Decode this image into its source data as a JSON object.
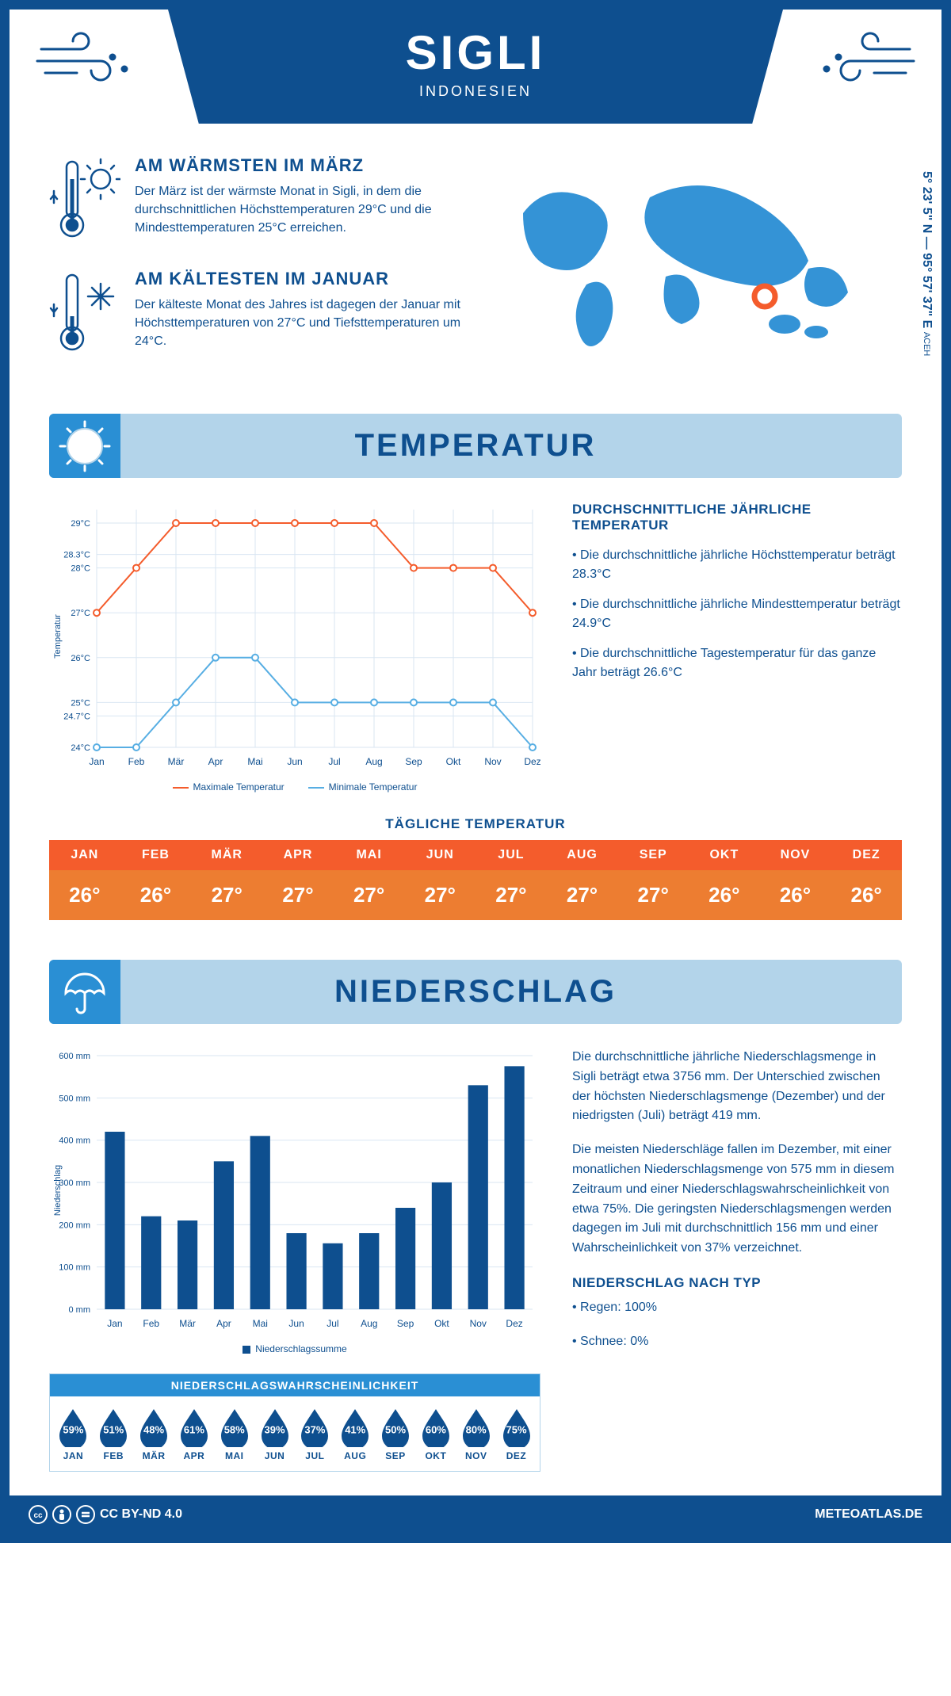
{
  "header": {
    "city": "SIGLI",
    "country": "INDONESIEN"
  },
  "coords": {
    "lat": "5° 23' 5\" N — 95° 57' 37\" E",
    "region": "ACEH"
  },
  "colors": {
    "primary": "#0e4f8f",
    "light_blue": "#b3d4ea",
    "accent_blue": "#2a8fd4",
    "orange_header": "#f45c2c",
    "orange_body": "#ed7d31",
    "bg": "#ffffff",
    "max_line": "#f45c2c",
    "min_line": "#57aee3",
    "grid": "#d9e6f2"
  },
  "facts": {
    "warm": {
      "title": "AM WÄRMSTEN IM MÄRZ",
      "text": "Der März ist der wärmste Monat in Sigli, in dem die durchschnittlichen Höchsttemperaturen 29°C und die Mindesttemperaturen 25°C erreichen."
    },
    "cold": {
      "title": "AM KÄLTESTEN IM JANUAR",
      "text": "Der kälteste Monat des Jahres ist dagegen der Januar mit Höchsttemperaturen von 27°C und Tiefsttemperaturen um 24°C."
    }
  },
  "sections": {
    "temperature": "TEMPERATUR",
    "precipitation": "NIEDERSCHLAG"
  },
  "months": [
    "Jan",
    "Feb",
    "Mär",
    "Apr",
    "Mai",
    "Jun",
    "Jul",
    "Aug",
    "Sep",
    "Okt",
    "Nov",
    "Dez"
  ],
  "months_upper": [
    "JAN",
    "FEB",
    "MÄR",
    "APR",
    "MAI",
    "JUN",
    "JUL",
    "AUG",
    "SEP",
    "OKT",
    "NOV",
    "DEZ"
  ],
  "temp_chart": {
    "type": "line",
    "ylabel": "Temperatur",
    "ylim": [
      24,
      29.3
    ],
    "yticks": [
      "24°C",
      "24.7°C",
      "25°C",
      "26°C",
      "27°C",
      "28°C",
      "28.3°C",
      "29°C"
    ],
    "ytick_vals": [
      24,
      24.7,
      25,
      26,
      27,
      28,
      28.3,
      29
    ],
    "max": [
      27,
      28,
      29,
      29,
      29,
      29,
      29,
      29,
      28,
      28,
      28,
      27
    ],
    "min": [
      24,
      24,
      25,
      26,
      26,
      25,
      25,
      25,
      25,
      25,
      25,
      24
    ],
    "legend_max": "Maximale Temperatur",
    "legend_min": "Minimale Temperatur",
    "line_width": 2,
    "marker": "circle"
  },
  "temp_side": {
    "title": "DURCHSCHNITTLICHE JÄHRLICHE TEMPERATUR",
    "p1": "• Die durchschnittliche jährliche Höchsttemperatur beträgt 28.3°C",
    "p2": "• Die durchschnittliche jährliche Mindesttemperatur beträgt 24.9°C",
    "p3": "• Die durchschnittliche Tagestemperatur für das ganze Jahr beträgt 26.6°C"
  },
  "daily_temp": {
    "title": "TÄGLICHE TEMPERATUR",
    "values": [
      "26°",
      "26°",
      "27°",
      "27°",
      "27°",
      "27°",
      "27°",
      "27°",
      "27°",
      "26°",
      "26°",
      "26°"
    ]
  },
  "precip_chart": {
    "type": "bar",
    "ylabel": "Niederschlag",
    "legend": "Niederschlagssumme",
    "ylim": [
      0,
      600
    ],
    "ytick_step": 100,
    "values": [
      420,
      220,
      210,
      350,
      410,
      180,
      156,
      180,
      240,
      300,
      530,
      575
    ],
    "bar_color": "#0e4f8f",
    "bar_width": 0.55
  },
  "precip_text": {
    "p1": "Die durchschnittliche jährliche Niederschlagsmenge in Sigli beträgt etwa 3756 mm. Der Unterschied zwischen der höchsten Niederschlagsmenge (Dezember) und der niedrigsten (Juli) beträgt 419 mm.",
    "p2": "Die meisten Niederschläge fallen im Dezember, mit einer monatlichen Niederschlagsmenge von 575 mm in diesem Zeitraum und einer Niederschlagswahrscheinlichkeit von etwa 75%. Die geringsten Niederschlagsmengen werden dagegen im Juli mit durchschnittlich 156 mm und einer Wahrscheinlichkeit von 37% verzeichnet.",
    "type_title": "NIEDERSCHLAG NACH TYP",
    "rain": "• Regen: 100%",
    "snow": "• Schnee: 0%"
  },
  "precip_prob": {
    "title": "NIEDERSCHLAGSWAHRSCHEINLICHKEIT",
    "values": [
      "59%",
      "51%",
      "48%",
      "61%",
      "58%",
      "39%",
      "37%",
      "41%",
      "50%",
      "60%",
      "80%",
      "75%"
    ]
  },
  "footer": {
    "license": "CC BY-ND 4.0",
    "site": "METEOATLAS.DE"
  }
}
